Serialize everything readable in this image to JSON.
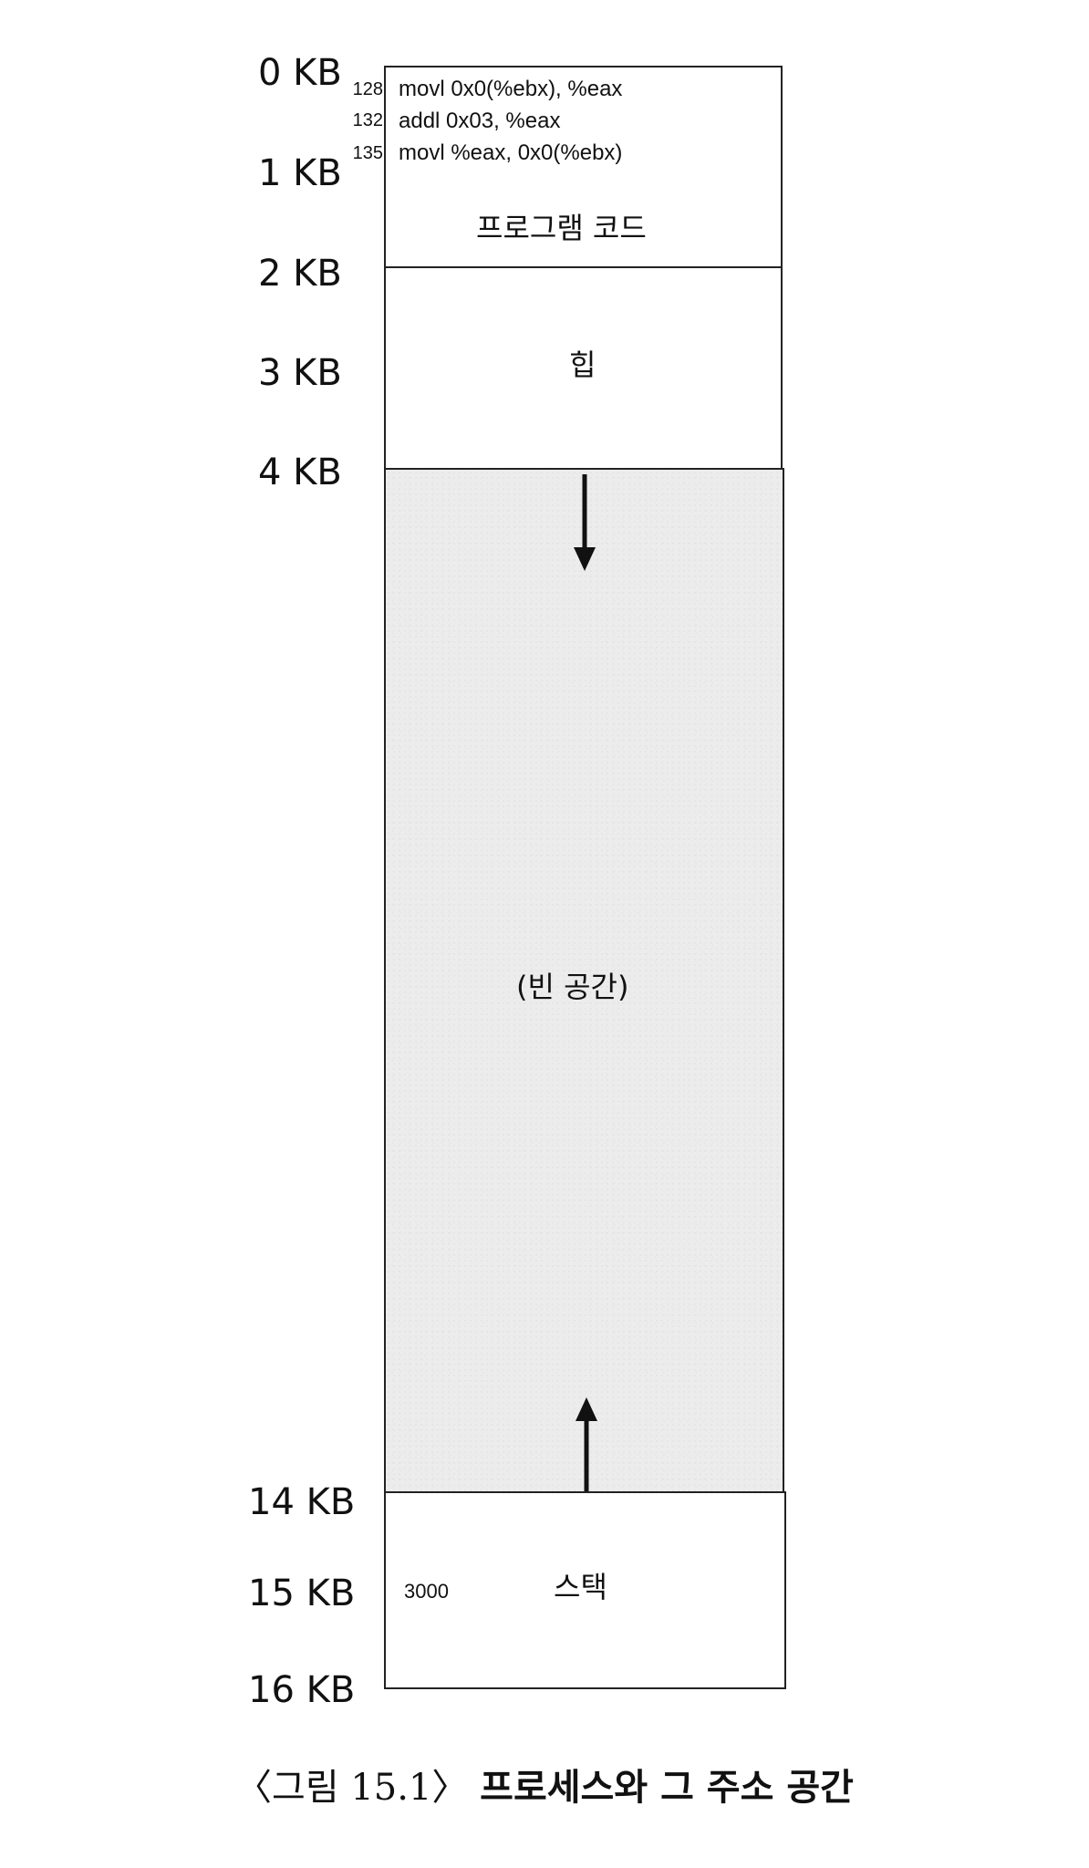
{
  "address_labels": [
    "0 KB",
    "1 KB",
    "2 KB",
    "3 KB",
    "4 KB",
    "14 KB",
    "15 KB",
    "16 KB"
  ],
  "program_code": {
    "label": "프로그램 코드",
    "instructions": [
      {
        "address": "128",
        "text": "movl 0x0(%ebx), %eax"
      },
      {
        "address": "132",
        "text": "addl 0x03, %eax"
      },
      {
        "address": "135",
        "text": "movl %eax, 0x0(%ebx)"
      }
    ]
  },
  "heap": {
    "label": "힙"
  },
  "free_space": {
    "label": "(빈 공간)"
  },
  "stack": {
    "label": "스택",
    "value": "3000"
  },
  "caption": {
    "figure": "〈그림 15.1〉",
    "title": "프로세스와 그 주소 공간"
  },
  "colors": {
    "border": "#222222",
    "free_space_fill": "#ececec",
    "arrow": "#111111"
  }
}
